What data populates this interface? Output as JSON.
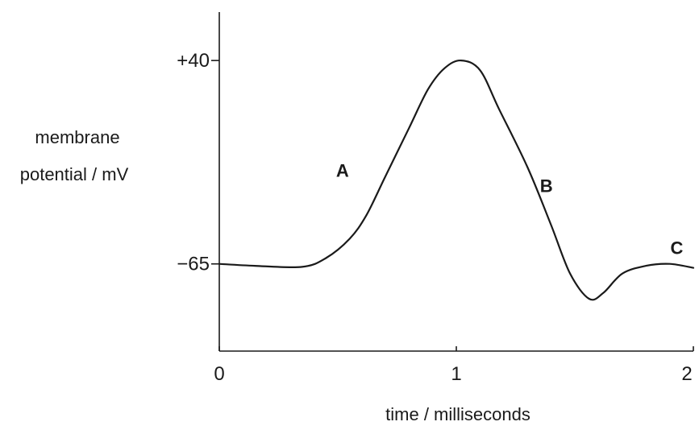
{
  "chart_data": {
    "type": "line",
    "title": "",
    "ylabel_lines": [
      "membrane",
      "potential / mV"
    ],
    "xlabel": "time / milliseconds",
    "xlim": [
      0,
      2
    ],
    "ylim": [
      -110,
      65
    ],
    "x_ticks": [
      {
        "value": 0,
        "label": "0"
      },
      {
        "value": 1,
        "label": "1"
      },
      {
        "value": 2,
        "label": "2"
      }
    ],
    "y_ticks": [
      {
        "value": 40,
        "label": "+40"
      },
      {
        "value": -65,
        "label": "−65"
      }
    ],
    "grid": false,
    "legend": "none",
    "series": [
      {
        "color": "#1a1a1a",
        "points": [
          [
            0.0,
            -65
          ],
          [
            0.15,
            -66
          ],
          [
            0.35,
            -66.5
          ],
          [
            0.45,
            -62
          ],
          [
            0.55,
            -52
          ],
          [
            0.62,
            -40
          ],
          [
            0.7,
            -20
          ],
          [
            0.8,
            5
          ],
          [
            0.88,
            25
          ],
          [
            0.95,
            36
          ],
          [
            1.02,
            40
          ],
          [
            1.1,
            35
          ],
          [
            1.18,
            15
          ],
          [
            1.3,
            -15
          ],
          [
            1.4,
            -45
          ],
          [
            1.48,
            -70
          ],
          [
            1.56,
            -83
          ],
          [
            1.62,
            -80
          ],
          [
            1.7,
            -70
          ],
          [
            1.8,
            -66
          ],
          [
            1.9,
            -65
          ],
          [
            2.0,
            -67
          ]
        ]
      }
    ],
    "annotations": [
      {
        "text": "A",
        "x": 0.52,
        "y": -20
      },
      {
        "text": "B",
        "x": 1.38,
        "y": -28
      },
      {
        "text": "C",
        "x": 1.93,
        "y": -60
      }
    ]
  }
}
